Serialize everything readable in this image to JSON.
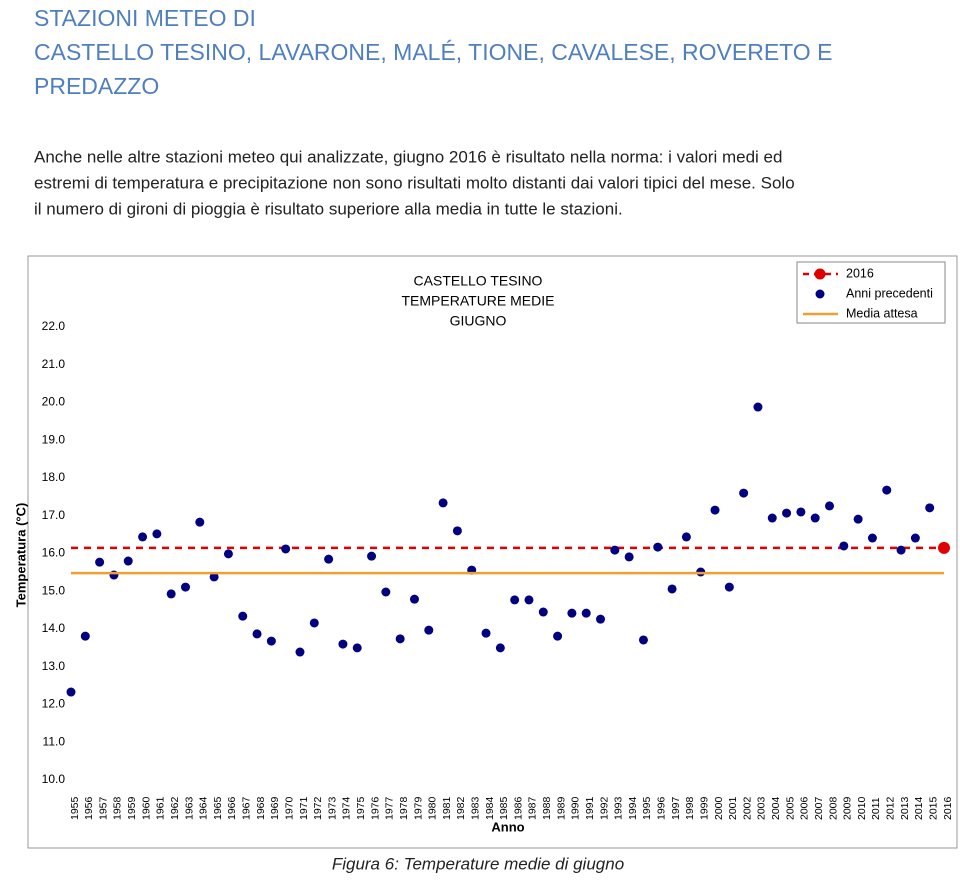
{
  "header": {
    "title_lines": [
      "STAZIONI METEO DI",
      "CASTELLO TESINO, LAVARONE, MALÉ, TIONE, CAVALESE, ROVERETO E",
      "PREDAZZO"
    ]
  },
  "paragraph": {
    "lines": [
      "Anche nelle altre stazioni meteo qui analizzate, giugno 2016 è risultato nella norma: i valori medi ed",
      "estremi di temperatura e precipitazione non sono risultati molto distanti dai valori tipici del mese.  Solo",
      "il numero di gironi di pioggia è risultato superiore alla media in tutte le stazioni."
    ]
  },
  "chart_data": {
    "type": "scatter",
    "title": [
      "CASTELLO TESINO",
      "TEMPERATURE MEDIE",
      "GIUGNO"
    ],
    "x_label": "Anno",
    "y_label": "Temperatura (°C)",
    "categories": [
      "1955",
      "1956",
      "1957",
      "1958",
      "1959",
      "1960",
      "1961",
      "1962",
      "1963",
      "1964",
      "1965",
      "1966",
      "1967",
      "1968",
      "1969",
      "1970",
      "1971",
      "1972",
      "1973",
      "1974",
      "1975",
      "1976",
      "1977",
      "1978",
      "1979",
      "1980",
      "1981",
      "1982",
      "1983",
      "1984",
      "1985",
      "1986",
      "1987",
      "1988",
      "1989",
      "1990",
      "1991",
      "1992",
      "1993",
      "1994",
      "1995",
      "1996",
      "1997",
      "1998",
      "1999",
      "2000",
      "2001",
      "2002",
      "2003",
      "2004",
      "2005",
      "2006",
      "2007",
      "2008",
      "2009",
      "2010",
      "2011",
      "2012",
      "2013",
      "2014",
      "2015",
      "2016"
    ],
    "series": [
      {
        "name": "2016",
        "color": "#e00000",
        "values": [
          null,
          null,
          null,
          null,
          null,
          null,
          null,
          null,
          null,
          null,
          null,
          null,
          null,
          null,
          null,
          null,
          null,
          null,
          null,
          null,
          null,
          null,
          null,
          null,
          null,
          null,
          null,
          null,
          null,
          null,
          null,
          null,
          null,
          null,
          null,
          null,
          null,
          null,
          null,
          null,
          null,
          null,
          null,
          null,
          null,
          null,
          null,
          null,
          null,
          null,
          null,
          null,
          null,
          null,
          null,
          null,
          null,
          null,
          null,
          null,
          null,
          16.15
        ]
      },
      {
        "name": "Anni precedenti",
        "color": "#000080",
        "values": [
          12.33,
          13.81,
          15.77,
          15.43,
          15.8,
          16.44,
          16.52,
          14.93,
          15.11,
          16.83,
          15.38,
          15.99,
          14.34,
          13.87,
          13.68,
          16.12,
          13.39,
          14.16,
          15.85,
          13.6,
          13.5,
          15.93,
          14.98,
          13.74,
          14.79,
          13.97,
          17.34,
          16.6,
          15.56,
          13.89,
          13.5,
          14.77,
          14.77,
          14.45,
          13.81,
          14.42,
          14.42,
          14.26,
          16.09,
          15.91,
          13.71,
          16.17,
          15.06,
          16.44,
          15.51,
          17.15,
          15.11,
          17.6,
          19.88,
          16.94,
          17.07,
          17.1,
          16.94,
          17.26,
          16.2,
          16.91,
          16.41,
          17.68,
          16.09,
          16.41,
          17.21,
          null
        ]
      },
      {
        "name": "Media attesa",
        "color": "#f0a030",
        "value": 15.48
      }
    ],
    "ylim": [
      10,
      22
    ],
    "yticks": [
      {
        "value": 10,
        "label": "10.0"
      },
      {
        "value": 11,
        "label": "11.0"
      },
      {
        "value": 12,
        "label": "12.0"
      },
      {
        "value": 13,
        "label": "13.0"
      },
      {
        "value": 14,
        "label": "14.0"
      },
      {
        "value": 15,
        "label": "15.0"
      },
      {
        "value": 16,
        "label": "16.0"
      },
      {
        "value": 17,
        "label": "17.0"
      },
      {
        "value": 18,
        "label": "18.0"
      },
      {
        "value": 19,
        "label": "19.0"
      },
      {
        "value": 20,
        "label": "20.0"
      },
      {
        "value": 21,
        "label": "21.0"
      },
      {
        "value": 22,
        "label": "22.0"
      }
    ],
    "grid": false,
    "legend": "top-right"
  },
  "caption": "Figura 6: Temperature medie di giugno"
}
